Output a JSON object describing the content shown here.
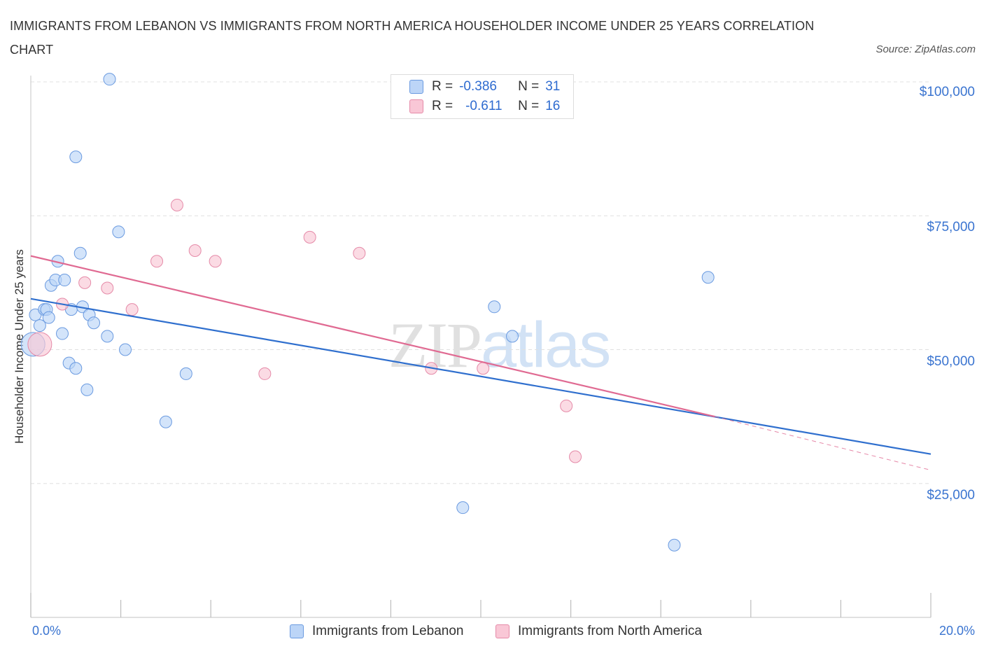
{
  "title": "IMMIGRANTS FROM LEBANON VS IMMIGRANTS FROM NORTH AMERICA HOUSEHOLDER INCOME UNDER 25 YEARS CORRELATION CHART",
  "source": "Source: ZipAtlas.com",
  "watermark": {
    "zip": "ZIP",
    "atlas": "atlas"
  },
  "legend": {
    "r_label": "R =",
    "n_label": "N =",
    "series": [
      {
        "name": "Immigrants from Lebanon",
        "r": "-0.386",
        "n": "31"
      },
      {
        "name": "Immigrants from North America",
        "r": "-0.611",
        "n": "16"
      }
    ]
  },
  "colors": {
    "blue_fill": "#bcd5f7",
    "blue_stroke": "#6a9ae0",
    "blue_line": "#2f6fce",
    "pink_fill": "#f9c7d6",
    "pink_stroke": "#e58aa8",
    "pink_line": "#e06a92",
    "axis_text": "#3a74d0",
    "grid": "#e0e0e0"
  },
  "chart_data": {
    "type": "scatter",
    "title": "IMMIGRANTS FROM LEBANON VS IMMIGRANTS FROM NORTH AMERICA HOUSEHOLDER INCOME UNDER 25 YEARS CORRELATION CHART",
    "xlabel": "",
    "ylabel": "Householder Income Under 25 years",
    "xlim": [
      0,
      20
    ],
    "ylim": [
      0,
      100000
    ],
    "x_tick_labels": {
      "min": "0.0%",
      "max": "20.0%"
    },
    "y_ticks": [
      {
        "value": 100000,
        "label": "$100,000"
      },
      {
        "value": 75000,
        "label": "$75,000"
      },
      {
        "value": 50000,
        "label": "$50,000"
      },
      {
        "value": 25000,
        "label": "$25,000"
      }
    ],
    "x_tick_count": 11,
    "grid": true,
    "series": [
      {
        "name": "Immigrants from Lebanon",
        "points": [
          {
            "x": 0.05,
            "y": 51000,
            "big": true
          },
          {
            "x": 0.1,
            "y": 56500
          },
          {
            "x": 0.2,
            "y": 54500
          },
          {
            "x": 0.3,
            "y": 57500
          },
          {
            "x": 0.35,
            "y": 57500
          },
          {
            "x": 0.4,
            "y": 56000
          },
          {
            "x": 0.45,
            "y": 62000
          },
          {
            "x": 0.55,
            "y": 63000
          },
          {
            "x": 0.6,
            "y": 66500
          },
          {
            "x": 0.7,
            "y": 53000
          },
          {
            "x": 0.75,
            "y": 63000
          },
          {
            "x": 0.85,
            "y": 47500
          },
          {
            "x": 0.9,
            "y": 57500
          },
          {
            "x": 1.0,
            "y": 86000
          },
          {
            "x": 1.0,
            "y": 46500
          },
          {
            "x": 1.1,
            "y": 68000
          },
          {
            "x": 1.15,
            "y": 58000
          },
          {
            "x": 1.25,
            "y": 42500
          },
          {
            "x": 1.3,
            "y": 56500
          },
          {
            "x": 1.4,
            "y": 55000
          },
          {
            "x": 1.7,
            "y": 52500
          },
          {
            "x": 1.75,
            "y": 100500
          },
          {
            "x": 1.95,
            "y": 72000
          },
          {
            "x": 2.1,
            "y": 50000
          },
          {
            "x": 3.0,
            "y": 36500
          },
          {
            "x": 3.45,
            "y": 45500
          },
          {
            "x": 9.6,
            "y": 20500
          },
          {
            "x": 10.3,
            "y": 58000
          },
          {
            "x": 10.7,
            "y": 52500
          },
          {
            "x": 14.3,
            "y": 13500
          },
          {
            "x": 15.05,
            "y": 63500
          }
        ],
        "trend": {
          "x": [
            0,
            20
          ],
          "y": [
            59500,
            30500
          ]
        }
      },
      {
        "name": "Immigrants from North America",
        "points": [
          {
            "x": 0.2,
            "y": 51000,
            "big": true
          },
          {
            "x": 0.7,
            "y": 58500
          },
          {
            "x": 1.2,
            "y": 62500
          },
          {
            "x": 1.7,
            "y": 61500
          },
          {
            "x": 2.25,
            "y": 57500
          },
          {
            "x": 2.8,
            "y": 66500
          },
          {
            "x": 3.25,
            "y": 77000
          },
          {
            "x": 3.65,
            "y": 68500
          },
          {
            "x": 4.1,
            "y": 66500
          },
          {
            "x": 5.2,
            "y": 45500
          },
          {
            "x": 6.2,
            "y": 71000
          },
          {
            "x": 7.3,
            "y": 68000
          },
          {
            "x": 8.9,
            "y": 46500
          },
          {
            "x": 10.05,
            "y": 46500
          },
          {
            "x": 11.9,
            "y": 39500
          },
          {
            "x": 12.1,
            "y": 30000
          }
        ],
        "trend": {
          "x": [
            0,
            15.2
          ],
          "y": [
            67500,
            37500
          ]
        },
        "trend_dashed": {
          "x": [
            15.2,
            20
          ],
          "y": [
            37500,
            27500
          ]
        }
      }
    ]
  }
}
